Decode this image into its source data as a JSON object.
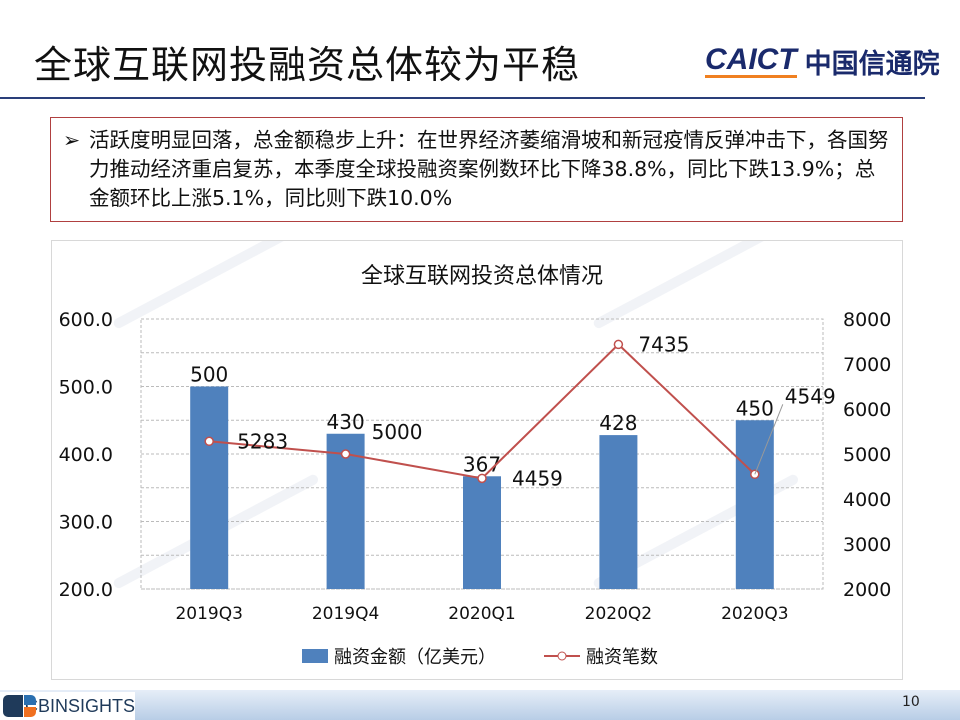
{
  "header": {
    "title": "全球互联网投融资总体较为平稳",
    "logo_en": "CAICT",
    "logo_cn": "中国信通院"
  },
  "summary": {
    "bullet": "➢",
    "text": "活跃度明显回落，总金额稳步上升：在世界经济萎缩滑坡和新冠疫情反弹冲击下，各国努力推动经济重启复苏，本季度全球投融资案例数环比下降38.8%，同比下跌13.9%；总金额环比上涨5.1%，同比则下跌10.0%"
  },
  "chart_data": {
    "type": "bar+line",
    "title": "全球互联网投资总体情况",
    "categories": [
      "2019Q3",
      "2019Q4",
      "2020Q1",
      "2020Q2",
      "2020Q3"
    ],
    "series": [
      {
        "name": "融资金额（亿美元）",
        "type": "bar",
        "axis": "left",
        "values": [
          500,
          430,
          367,
          428,
          450
        ],
        "color": "#4f81bd"
      },
      {
        "name": "融资笔数",
        "type": "line",
        "axis": "right",
        "values": [
          5283,
          5000,
          4459,
          7435,
          4549
        ],
        "color": "#c0504d"
      }
    ],
    "y_left": {
      "range": [
        200,
        600
      ],
      "ticks": [
        "200.0",
        "300.0",
        "400.0",
        "500.0",
        "600.0"
      ]
    },
    "y_right": {
      "range": [
        2000,
        8000
      ],
      "ticks": [
        "2000",
        "3000",
        "4000",
        "5000",
        "6000",
        "7000",
        "8000"
      ]
    },
    "grid": true,
    "legend": "bottom"
  },
  "watermark": "CAICT 中国信通院",
  "footer": {
    "brand": "CBINSIGHTS",
    "page": "10"
  }
}
